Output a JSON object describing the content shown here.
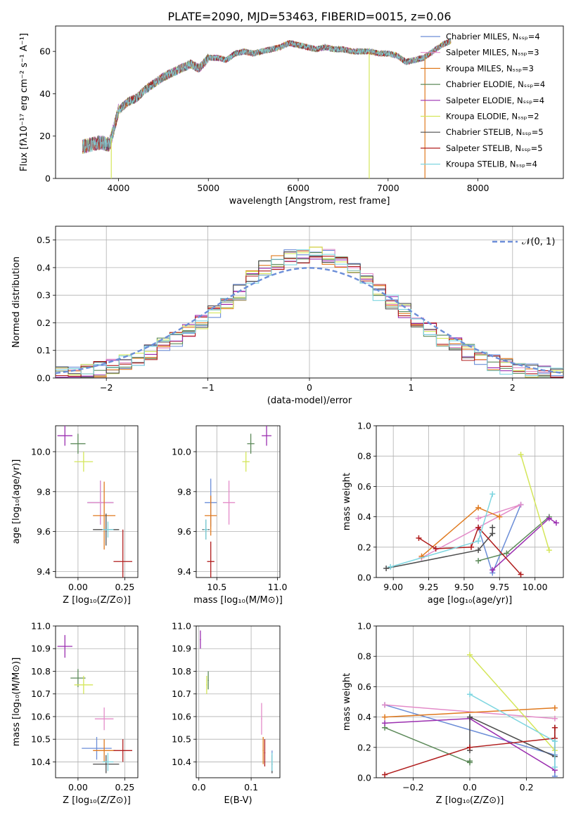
{
  "figure_title": "PLATE=2090, MJD=53463, FIBERID=0015, z=0.06",
  "colors": {
    "Chabrier MILES": "#6c8ed8",
    "Salpeter MILES": "#e38bc8",
    "Kroupa MILES": "#e07a1f",
    "Chabrier ELODIE": "#5d8a5a",
    "Salpeter ELODIE": "#9b2fb0",
    "Kroupa ELODIE": "#d4e65a",
    "Chabrier STELIB": "#4d4d4d",
    "Salpeter STELIB": "#b01c1c",
    "Kroupa STELIB": "#7fd6e0"
  },
  "chart_data": [
    {
      "id": "spectrum",
      "type": "line",
      "xlabel": "wavelength [Angstrom, rest frame]",
      "ylabel": "Flux [fλ10⁻¹⁷ erg cm⁻² s⁻¹ A⁻¹]",
      "xlim": [
        3300,
        8950
      ],
      "ylim": [
        0,
        72
      ],
      "xticks": [
        4000,
        5000,
        6000,
        7000,
        8000
      ],
      "yticks": [
        0,
        20,
        40,
        60
      ],
      "legend_position": "right",
      "grid": false,
      "series": [
        {
          "name": "Chabrier MILES, Nₛₛₚ=4"
        },
        {
          "name": "Salpeter MILES, Nₛₛₚ=3"
        },
        {
          "name": "Kroupa MILES, Nₛₛₚ=3"
        },
        {
          "name": "Chabrier ELODIE, Nₛₛₚ=4"
        },
        {
          "name": "Salpeter ELODIE, Nₛₛₚ=4"
        },
        {
          "name": "Kroupa ELODIE, Nₛₛₚ=2"
        },
        {
          "name": "Chabrier STELIB, Nₛₛₚ=5"
        },
        {
          "name": "Salpeter STELIB, Nₛₛₚ=5"
        },
        {
          "name": "Kroupa STELIB, Nₛₛₚ=4"
        }
      ],
      "continuum": {
        "x": [
          3600,
          3700,
          3800,
          3900,
          4000,
          4100,
          4200,
          4300,
          4400,
          4500,
          4600,
          4700,
          4800,
          4900,
          5000,
          5100,
          5200,
          5300,
          5400,
          5500,
          5600,
          5700,
          5800,
          5900,
          6000,
          6100,
          6200,
          6300,
          6400,
          6500,
          6600,
          6700,
          6800,
          6900,
          7000,
          7100,
          7200,
          7300,
          7400,
          7500,
          7600,
          7700
        ],
        "y": [
          15,
          16,
          17,
          16,
          32,
          36,
          38,
          42,
          45,
          48,
          50,
          52,
          54,
          52,
          57,
          57,
          56,
          59,
          60,
          59,
          60,
          61,
          62,
          64,
          63,
          62,
          61,
          62,
          61,
          61,
          60,
          60,
          60,
          59,
          59,
          58,
          55,
          56,
          57,
          60,
          63,
          65
        ]
      },
      "dropouts": [
        {
          "x": 3920,
          "color": "#d4e65a"
        },
        {
          "x": 6790,
          "color": "#d4e65a"
        },
        {
          "x": 7410,
          "color": "#e07a1f"
        }
      ]
    },
    {
      "id": "residuals",
      "type": "histogram",
      "xlabel": "(data-model)/error",
      "ylabel": "Normed distribution",
      "xlim": [
        -2.5,
        2.5
      ],
      "ylim": [
        0,
        0.55
      ],
      "xticks": [
        -2,
        -1,
        0,
        1,
        2
      ],
      "yticks": [
        0.0,
        0.1,
        0.2,
        0.3,
        0.4,
        0.5
      ],
      "grid": true,
      "legend_position": "top-right",
      "legend_label": "𝒩(0, 1)",
      "bin_width": 0.125,
      "bin_start": -2.5,
      "reference_curve": {
        "name": "N(0,1)",
        "mean": 0,
        "sigma": 1
      }
    },
    {
      "id": "age_vs_Z",
      "type": "scatter",
      "xlabel": "Z [log₁₀(Z/Z⊙)]",
      "ylabel": "age  [log₁₀(age/yr)]",
      "xlim": [
        -0.12,
        0.32
      ],
      "ylim": [
        9.37,
        10.13
      ],
      "xticks": [
        0.0,
        0.25
      ],
      "yticks": [
        9.4,
        9.6,
        9.8,
        10.0
      ],
      "grid": true,
      "points": [
        {
          "name": "Chabrier MILES",
          "x": 0.12,
          "y": 9.745,
          "xerr": 0.07,
          "yerr": 0.11
        },
        {
          "name": "Salpeter MILES",
          "x": 0.12,
          "y": 9.745,
          "xerr": 0.07,
          "yerr": 0.11
        },
        {
          "name": "Kroupa MILES",
          "x": 0.14,
          "y": 9.68,
          "xerr": 0.06,
          "yerr": 0.17
        },
        {
          "name": "Chabrier ELODIE",
          "x": 0.0,
          "y": 10.04,
          "xerr": 0.04,
          "yerr": 0.05
        },
        {
          "name": "Salpeter ELODIE",
          "x": -0.07,
          "y": 10.08,
          "xerr": 0.04,
          "yerr": 0.05
        },
        {
          "name": "Kroupa ELODIE",
          "x": 0.03,
          "y": 9.95,
          "xerr": 0.05,
          "yerr": 0.05
        },
        {
          "name": "Chabrier STELIB",
          "x": 0.15,
          "y": 9.61,
          "xerr": 0.07,
          "yerr": 0.08
        },
        {
          "name": "Salpeter STELIB",
          "x": 0.24,
          "y": 9.45,
          "xerr": 0.05,
          "yerr": 0.16
        },
        {
          "name": "Kroupa STELIB",
          "x": 0.16,
          "y": 9.61,
          "xerr": 0.03,
          "yerr": 0.04
        }
      ]
    },
    {
      "id": "age_vs_mass",
      "type": "scatter",
      "xlabel": "mass [log₁₀(M/M⊙)]",
      "ylabel": "",
      "xlim": [
        10.33,
        11.02
      ],
      "ylim": [
        9.37,
        10.13
      ],
      "xticks": [
        10.5,
        11.0
      ],
      "yticks": [
        9.4,
        9.6,
        9.8,
        10.0
      ],
      "grid": true,
      "points": [
        {
          "name": "Chabrier MILES",
          "x": 10.45,
          "y": 9.745,
          "xerr": 0.05,
          "yerr": 0.12
        },
        {
          "name": "Salpeter MILES",
          "x": 10.6,
          "y": 9.745,
          "xerr": 0.05,
          "yerr": 0.11
        },
        {
          "name": "Kroupa MILES",
          "x": 10.45,
          "y": 9.68,
          "xerr": 0.05,
          "yerr": 0.1
        },
        {
          "name": "Chabrier ELODIE",
          "x": 10.78,
          "y": 10.04,
          "xerr": 0.03,
          "yerr": 0.05
        },
        {
          "name": "Salpeter ELODIE",
          "x": 10.91,
          "y": 10.08,
          "xerr": 0.04,
          "yerr": 0.05
        },
        {
          "name": "Kroupa ELODIE",
          "x": 10.74,
          "y": 9.95,
          "xerr": 0.03,
          "yerr": 0.05
        },
        {
          "name": "Chabrier STELIB",
          "x": 10.41,
          "y": 9.61,
          "xerr": 0.03,
          "yerr": 0.05
        },
        {
          "name": "Salpeter STELIB",
          "x": 10.45,
          "y": 9.45,
          "xerr": 0.03,
          "yerr": 0.1
        },
        {
          "name": "Kroupa STELIB",
          "x": 10.41,
          "y": 9.61,
          "xerr": 0.02,
          "yerr": 0.05
        }
      ]
    },
    {
      "id": "weight_vs_age",
      "type": "line",
      "xlabel": "age  [log₁₀(age/yr)]",
      "ylabel": "mass weight",
      "xlim": [
        8.88,
        10.2
      ],
      "ylim": [
        0.0,
        1.0
      ],
      "xticks": [
        9.0,
        9.25,
        9.5,
        9.75,
        10.0
      ],
      "yticks": [
        0.0,
        0.2,
        0.4,
        0.6,
        0.8,
        1.0
      ],
      "grid": true,
      "series": [
        {
          "name": "Chabrier MILES",
          "x": [
            9.6,
            9.7,
            9.9
          ],
          "y": [
            0.33,
            0.03,
            0.48
          ]
        },
        {
          "name": "Salpeter MILES",
          "x": [
            9.6,
            9.9,
            9.2
          ],
          "y": [
            0.39,
            0.48,
            0.13
          ]
        },
        {
          "name": "Kroupa MILES",
          "x": [
            9.2,
            9.6,
            9.75
          ],
          "y": [
            0.14,
            0.46,
            0.4
          ]
        },
        {
          "name": "Chabrier ELODIE",
          "x": [
            9.6,
            9.8,
            10.1
          ],
          "y": [
            0.11,
            0.16,
            0.4
          ]
        },
        {
          "name": "Salpeter ELODIE",
          "x": [
            9.7,
            10.1,
            10.15
          ],
          "y": [
            0.05,
            0.39,
            0.36
          ]
        },
        {
          "name": "Kroupa ELODIE",
          "x": [
            9.9,
            10.1
          ],
          "y": [
            0.81,
            0.18
          ]
        },
        {
          "name": "Chabrier STELIB",
          "x": [
            8.95,
            9.6,
            9.7,
            9.7
          ],
          "y": [
            0.06,
            0.18,
            0.29,
            0.33
          ]
        },
        {
          "name": "Salpeter STELIB",
          "x": [
            9.18,
            9.3,
            9.55,
            9.6,
            9.9
          ],
          "y": [
            0.26,
            0.19,
            0.2,
            0.33,
            0.02
          ]
        },
        {
          "name": "Kroupa STELIB",
          "x": [
            8.98,
            9.6,
            9.7
          ],
          "y": [
            0.07,
            0.24,
            0.55
          ]
        }
      ]
    },
    {
      "id": "mass_vs_Z",
      "type": "scatter",
      "xlabel": "Z [log₁₀(Z/Z⊙)]",
      "ylabel": "mass [log₁₀(M/M⊙)]",
      "xlim": [
        -0.12,
        0.32
      ],
      "ylim": [
        10.33,
        11.0
      ],
      "xticks": [
        0.0,
        0.25
      ],
      "yticks": [
        10.4,
        10.5,
        10.6,
        10.7,
        10.8,
        10.9,
        11.0
      ],
      "grid": true,
      "points": [
        {
          "name": "Chabrier MILES",
          "x": 0.1,
          "y": 10.46,
          "xerr": 0.08,
          "yerr": 0.05
        },
        {
          "name": "Salpeter MILES",
          "x": 0.14,
          "y": 10.59,
          "xerr": 0.05,
          "yerr": 0.05
        },
        {
          "name": "Kroupa MILES",
          "x": 0.14,
          "y": 10.45,
          "xerr": 0.06,
          "yerr": 0.05
        },
        {
          "name": "Chabrier ELODIE",
          "x": 0.0,
          "y": 10.77,
          "xerr": 0.04,
          "yerr": 0.04
        },
        {
          "name": "Salpeter ELODIE",
          "x": -0.07,
          "y": 10.91,
          "xerr": 0.04,
          "yerr": 0.05
        },
        {
          "name": "Kroupa ELODIE",
          "x": 0.03,
          "y": 10.74,
          "xerr": 0.05,
          "yerr": 0.04
        },
        {
          "name": "Chabrier STELIB",
          "x": 0.15,
          "y": 10.39,
          "xerr": 0.07,
          "yerr": 0.04
        },
        {
          "name": "Salpeter STELIB",
          "x": 0.24,
          "y": 10.45,
          "xerr": 0.05,
          "yerr": 0.05
        },
        {
          "name": "Kroupa STELIB",
          "x": 0.16,
          "y": 10.4,
          "xerr": 0.03,
          "yerr": 0.04
        }
      ]
    },
    {
      "id": "mass_vs_ebv",
      "type": "scatter",
      "xlabel": "E(B-V)",
      "ylabel": "",
      "xlim": [
        -0.005,
        0.155
      ],
      "ylim": [
        10.33,
        11.0
      ],
      "xticks": [
        0.0,
        0.1
      ],
      "yticks": [
        10.4,
        10.5,
        10.6,
        10.7,
        10.8,
        10.9,
        11.0
      ],
      "grid": true,
      "points": [
        {
          "name": "Chabrier MILES",
          "x": 0.14,
          "y": 10.4,
          "xerr": 0.001,
          "yerr": 0.05
        },
        {
          "name": "Salpeter MILES",
          "x": 0.12,
          "y": 10.59,
          "xerr": 0.001,
          "yerr": 0.07
        },
        {
          "name": "Kroupa MILES",
          "x": 0.123,
          "y": 10.45,
          "xerr": 0.001,
          "yerr": 0.06
        },
        {
          "name": "Chabrier ELODIE",
          "x": 0.018,
          "y": 10.76,
          "xerr": 0.001,
          "yerr": 0.04
        },
        {
          "name": "Salpeter ELODIE",
          "x": 0.003,
          "y": 10.94,
          "xerr": 0.001,
          "yerr": 0.04
        },
        {
          "name": "Kroupa ELODIE",
          "x": 0.015,
          "y": 10.74,
          "xerr": 0.001,
          "yerr": 0.04
        },
        {
          "name": "Chabrier STELIB",
          "x": 0.14,
          "y": 10.39,
          "xerr": 0.001,
          "yerr": 0.04
        },
        {
          "name": "Salpeter STELIB",
          "x": 0.126,
          "y": 10.44,
          "xerr": 0.001,
          "yerr": 0.06
        },
        {
          "name": "Kroupa STELIB",
          "x": 0.14,
          "y": 10.4,
          "xerr": 0.001,
          "yerr": 0.04
        }
      ]
    },
    {
      "id": "weight_vs_Z",
      "type": "line",
      "xlabel": "Z [log₁₀(Z/Z⊙)]",
      "ylabel": "mass weight",
      "xlim": [
        -0.33,
        0.33
      ],
      "ylim": [
        0.0,
        1.0
      ],
      "xticks": [
        -0.2,
        0.0,
        0.2
      ],
      "yticks": [
        0.0,
        0.2,
        0.4,
        0.6,
        0.8,
        1.0
      ],
      "grid": true,
      "series": [
        {
          "name": "Chabrier MILES",
          "x": [
            -0.3,
            0.3,
            0.3
          ],
          "y": [
            0.48,
            0.15,
            0.01
          ]
        },
        {
          "name": "Salpeter MILES",
          "x": [
            -0.3,
            0.3
          ],
          "y": [
            0.48,
            0.39
          ]
        },
        {
          "name": "Kroupa MILES",
          "x": [
            -0.3,
            0.3
          ],
          "y": [
            0.4,
            0.46
          ]
        },
        {
          "name": "Chabrier ELODIE",
          "x": [
            -0.3,
            0.0,
            0.0
          ],
          "y": [
            0.33,
            0.1,
            0.11
          ]
        },
        {
          "name": "Salpeter ELODIE",
          "x": [
            -0.3,
            0.0,
            0.3
          ],
          "y": [
            0.36,
            0.39,
            0.05
          ]
        },
        {
          "name": "Kroupa ELODIE",
          "x": [
            0.0,
            0.3
          ],
          "y": [
            0.81,
            0.18
          ]
        },
        {
          "name": "Chabrier STELIB",
          "x": [
            0.0,
            0.0,
            0.0,
            0.3,
            0.3
          ],
          "y": [
            0.4,
            0.18,
            0.4,
            0.14,
            0.33
          ]
        },
        {
          "name": "Salpeter STELIB",
          "x": [
            -0.3,
            0.0,
            0.3,
            0.3
          ],
          "y": [
            0.02,
            0.2,
            0.26,
            0.33
          ]
        },
        {
          "name": "Kroupa STELIB",
          "x": [
            0.0,
            0.3,
            0.3
          ],
          "y": [
            0.55,
            0.24,
            0.07
          ]
        }
      ]
    }
  ]
}
